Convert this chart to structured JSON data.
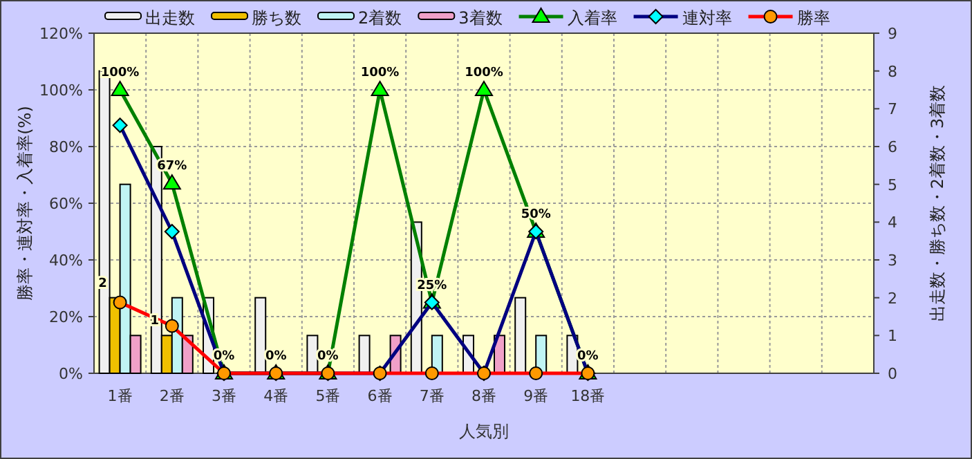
{
  "chart_data": {
    "type": "bar",
    "xlabel": "人気別",
    "ylabel": "勝率・連対率・入着率(%)",
    "y2label": "出走数・勝ち数・2着数・3着数",
    "categories": [
      "1番",
      "2番",
      "3番",
      "4番",
      "5番",
      "6番",
      "7番",
      "8番",
      "9番",
      "18番",
      null,
      null,
      null,
      null,
      null
    ],
    "ylim": [
      0,
      120
    ],
    "yticks": [
      {
        "value": 0,
        "label": "0%"
      },
      {
        "value": 20,
        "label": "20%"
      },
      {
        "value": 40,
        "label": "40%"
      },
      {
        "value": 60,
        "label": "60%"
      },
      {
        "value": 80,
        "label": "80%"
      },
      {
        "value": 100,
        "label": "100%"
      },
      {
        "value": 120,
        "label": "120%"
      }
    ],
    "y2lim": [
      0,
      9
    ],
    "y2ticks": [
      0,
      1,
      2,
      3,
      4,
      5,
      6,
      7,
      8,
      9
    ],
    "grid": true,
    "legend": "top",
    "series": [
      {
        "name": "出走数",
        "axis": "y2",
        "color": "#f0f0f0",
        "values": [
          8,
          6,
          2,
          2,
          1,
          1,
          4,
          1,
          2,
          1,
          null,
          null,
          null,
          null,
          null
        ]
      },
      {
        "name": "勝ち数",
        "axis": "y2",
        "color": "#f0c000",
        "values": [
          2,
          1,
          0,
          0,
          0,
          0,
          0,
          0,
          0,
          0,
          null,
          null,
          null,
          null,
          null
        ],
        "value_labels": [
          "2",
          "1",
          null,
          null,
          null,
          null,
          null,
          null,
          null,
          null,
          null,
          null,
          null,
          null,
          null
        ]
      },
      {
        "name": "2着数",
        "axis": "y2",
        "color": "#c0f4f4",
        "values": [
          5,
          2,
          0,
          0,
          0,
          0,
          1,
          0,
          1,
          0,
          null,
          null,
          null,
          null,
          null
        ]
      },
      {
        "name": "3着数",
        "axis": "y2",
        "color": "#f0a0c8",
        "values": [
          1,
          1,
          0,
          0,
          0,
          1,
          0,
          1,
          0,
          0,
          null,
          null,
          null,
          null,
          null
        ]
      },
      {
        "name": "入着率",
        "type": "line",
        "color": "#008000",
        "marker": "triangle",
        "values": [
          100,
          67,
          0,
          0,
          0,
          100,
          25,
          100,
          50,
          0,
          null,
          null,
          null,
          null,
          null
        ],
        "value_labels": [
          "100%",
          "67%",
          "0%",
          "0%",
          "0%",
          "100%",
          "25%",
          "100%",
          "50%",
          "0%",
          null,
          null,
          null,
          null,
          null
        ]
      },
      {
        "name": "連対率",
        "type": "line",
        "color": "#000080",
        "marker": "diamond",
        "values": [
          87.5,
          50,
          0,
          0,
          0,
          0,
          25,
          0,
          50,
          0,
          null,
          null,
          null,
          null,
          null
        ]
      },
      {
        "name": "勝率",
        "type": "line",
        "color": "#ff0000",
        "marker": "circle",
        "values": [
          25,
          16.7,
          0,
          0,
          0,
          0,
          0,
          0,
          0,
          0,
          null,
          null,
          null,
          null,
          null
        ]
      }
    ]
  }
}
